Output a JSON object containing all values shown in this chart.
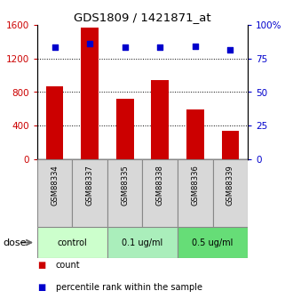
{
  "title": "GDS1809 / 1421871_at",
  "samples": [
    "GSM88334",
    "GSM88337",
    "GSM88335",
    "GSM88338",
    "GSM88336",
    "GSM88339"
  ],
  "bar_values": [
    870,
    1560,
    720,
    940,
    590,
    340
  ],
  "scatter_values": [
    83,
    86,
    83,
    83,
    84,
    81
  ],
  "bar_color": "#cc0000",
  "scatter_color": "#0000cc",
  "left_ylim": [
    0,
    1600
  ],
  "right_ylim": [
    0,
    100
  ],
  "left_yticks": [
    0,
    400,
    800,
    1200,
    1600
  ],
  "right_yticks": [
    0,
    25,
    50,
    75,
    100
  ],
  "right_yticklabels": [
    "0",
    "25",
    "50",
    "75",
    "100%"
  ],
  "groups": [
    {
      "label": "control",
      "indices": [
        0,
        1
      ],
      "color": "#ccffcc"
    },
    {
      "label": "0.1 ug/ml",
      "indices": [
        2,
        3
      ],
      "color": "#aaeebb"
    },
    {
      "label": "0.5 ug/ml",
      "indices": [
        4,
        5
      ],
      "color": "#66dd77"
    }
  ],
  "dose_label": "dose",
  "legend_count": "count",
  "legend_pct": "percentile rank within the sample",
  "grid_yticks": [
    400,
    800,
    1200
  ],
  "sample_bg_color": "#d8d8d8",
  "bar_width": 0.5,
  "scatter_size": 16
}
